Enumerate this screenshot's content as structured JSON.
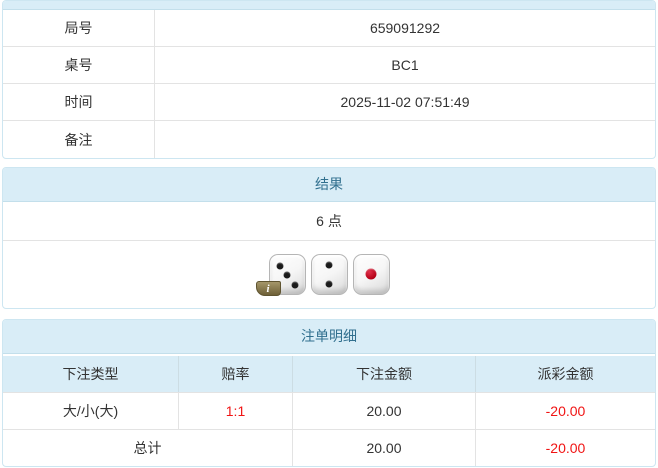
{
  "colors": {
    "heading_bg": "#d9edf7",
    "heading_text": "#31708f",
    "panel_border": "#cde6f1",
    "row_border": "#e3e3e3",
    "negative_red": "#f01414",
    "body_text": "#333333"
  },
  "info_table": {
    "rows": [
      {
        "label": "局号",
        "value": "659091292"
      },
      {
        "label": "桌号",
        "value": "BC1"
      },
      {
        "label": "时间",
        "value": "2025-11-02 07:51:49"
      },
      {
        "label": "备注",
        "value": ""
      }
    ]
  },
  "result_panel": {
    "title": "结果",
    "points": "6 点",
    "dice": [
      {
        "value": 3,
        "color": "black"
      },
      {
        "value": 2,
        "color": "black"
      },
      {
        "value": 1,
        "color": "red"
      }
    ],
    "info_badge": "i"
  },
  "bets_panel": {
    "title": "注单明细",
    "columns": {
      "type": "下注类型",
      "odds": "赔率",
      "amount": "下注金额",
      "payout": "派彩金额"
    },
    "rows": [
      {
        "type": "大/小(大)",
        "odds": "1:1",
        "amount": "20.00",
        "payout": "-20.00"
      }
    ],
    "total": {
      "label": "总计",
      "amount": "20.00",
      "payout": "-20.00"
    }
  }
}
